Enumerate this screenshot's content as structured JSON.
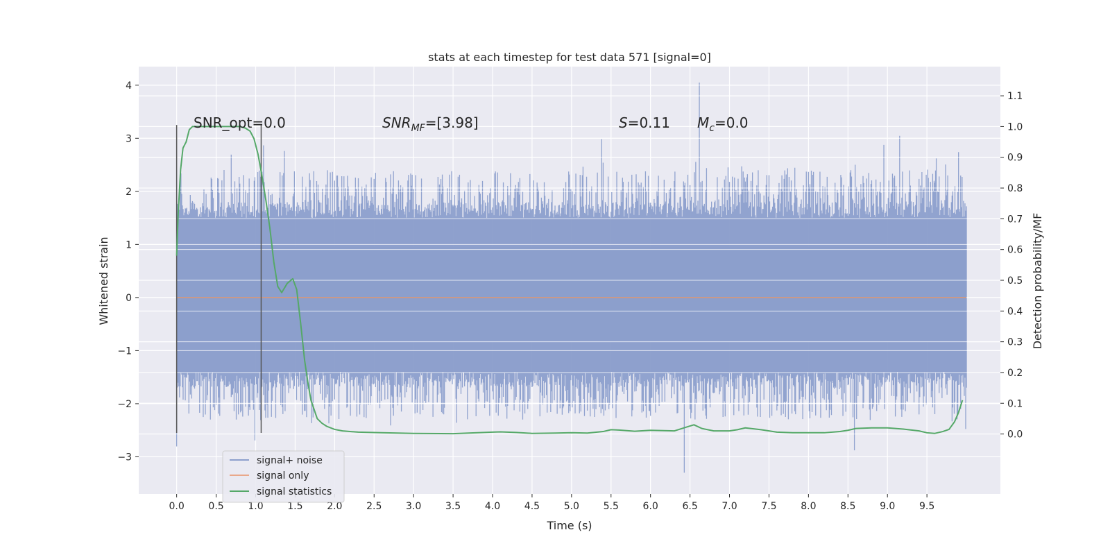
{
  "chart_data": {
    "type": "line",
    "title": "stats at each timestep for test data 571 [signal=0]",
    "xlabel": "Time (s)",
    "ylabel_left": "Whitened strain",
    "ylabel_right": "Detection probability/MF",
    "xlim": [
      -0.48,
      10.43
    ],
    "ylim_left": [
      -3.7,
      4.35
    ],
    "ylim_right": [
      -0.195,
      1.195
    ],
    "x_ticks": [
      0.0,
      0.5,
      1.0,
      1.5,
      2.0,
      2.5,
      3.0,
      3.5,
      4.0,
      4.5,
      5.0,
      5.5,
      6.0,
      6.5,
      7.0,
      7.5,
      8.0,
      8.5,
      9.0,
      9.5
    ],
    "x_tick_labels": [
      "0.0",
      "0.5",
      "1.0",
      "1.5",
      "2.0",
      "2.5",
      "3.0",
      "3.5",
      "4.0",
      "4.5",
      "5.0",
      "5.5",
      "6.0",
      "6.5",
      "7.0",
      "7.5",
      "8.0",
      "8.5",
      "9.0",
      "9.5"
    ],
    "y_left_ticks": [
      -3,
      -2,
      -1,
      0,
      1,
      2,
      3,
      4
    ],
    "y_left_tick_labels": [
      "−3",
      "−2",
      "−1",
      "0",
      "1",
      "2",
      "3",
      "4"
    ],
    "y_right_ticks": [
      0.0,
      0.1,
      0.2,
      0.3,
      0.4,
      0.5,
      0.6,
      0.7,
      0.8,
      0.9,
      1.0,
      1.1
    ],
    "y_right_tick_labels": [
      "0.0",
      "0.1",
      "0.2",
      "0.3",
      "0.4",
      "0.5",
      "0.6",
      "0.7",
      "0.8",
      "0.9",
      "1.0",
      "1.1"
    ],
    "grid": true,
    "legend_position": "bottom-left",
    "legend": [
      "signal+ noise",
      "signal only",
      "signal statistics"
    ],
    "colors": {
      "noise": "#8c9fcc",
      "signal": "#dd8452",
      "stats": "#55a868",
      "vline": "#555555",
      "background": "#eaeaf2"
    },
    "annotations": {
      "snr_opt": "SNR_opt=0.0",
      "snr_mf_base": "SNR",
      "snr_mf_sub": "MF",
      "snr_mf_value": "=[3.98]",
      "s_sym": "S",
      "s_value": "=0.11",
      "mc_sym": "M",
      "mc_sub": "c",
      "mc_value": "=0.0"
    },
    "vertical_lines_x": [
      0.0,
      1.07
    ],
    "vertical_lines_y_range": [
      -2.55,
      3.25
    ],
    "series": [
      {
        "name": "signal+ noise",
        "axis": "left",
        "x_range": [
          0.0,
          10.0
        ],
        "core_band": [
          -1.4,
          1.5
        ],
        "dense_band": [
          -0.8,
          0.95
        ],
        "spike_max": 4.05,
        "spike_min": -3.3,
        "spike_max_x": 6.62,
        "spike_min_x": 6.43
      },
      {
        "name": "signal only",
        "axis": "left",
        "x": [
          0.0,
          10.0
        ],
        "y": [
          0.0,
          0.0
        ]
      },
      {
        "name": "signal statistics",
        "axis": "right",
        "x": [
          0.0,
          0.02,
          0.05,
          0.08,
          0.12,
          0.16,
          0.2,
          0.3,
          0.4,
          0.5,
          0.6,
          0.7,
          0.8,
          0.87,
          0.93,
          0.98,
          1.03,
          1.08,
          1.13,
          1.18,
          1.23,
          1.28,
          1.33,
          1.4,
          1.47,
          1.52,
          1.57,
          1.62,
          1.66,
          1.7,
          1.74,
          1.78,
          1.84,
          1.9,
          2.0,
          2.1,
          2.3,
          2.6,
          3.0,
          3.5,
          4.0,
          4.1,
          4.3,
          4.5,
          4.8,
          5.0,
          5.2,
          5.4,
          5.5,
          5.6,
          5.8,
          6.0,
          6.3,
          6.45,
          6.55,
          6.65,
          6.8,
          7.0,
          7.1,
          7.2,
          7.4,
          7.6,
          7.8,
          8.0,
          8.2,
          8.4,
          8.5,
          8.6,
          8.8,
          9.0,
          9.2,
          9.4,
          9.5,
          9.6,
          9.7,
          9.78,
          9.85,
          9.9,
          9.95
        ],
        "y": [
          0.58,
          0.72,
          0.86,
          0.93,
          0.95,
          0.99,
          1.0,
          1.0,
          1.0,
          1.0,
          1.0,
          1.0,
          1.0,
          0.995,
          0.985,
          0.96,
          0.91,
          0.84,
          0.76,
          0.67,
          0.56,
          0.48,
          0.46,
          0.49,
          0.505,
          0.47,
          0.36,
          0.24,
          0.17,
          0.11,
          0.08,
          0.05,
          0.035,
          0.025,
          0.015,
          0.01,
          0.006,
          0.004,
          0.002,
          0.001,
          0.006,
          0.007,
          0.005,
          0.002,
          0.003,
          0.004,
          0.003,
          0.008,
          0.014,
          0.013,
          0.009,
          0.012,
          0.01,
          0.022,
          0.03,
          0.018,
          0.01,
          0.01,
          0.014,
          0.02,
          0.014,
          0.006,
          0.004,
          0.004,
          0.004,
          0.008,
          0.012,
          0.018,
          0.02,
          0.02,
          0.016,
          0.01,
          0.004,
          0.002,
          0.008,
          0.015,
          0.04,
          0.07,
          0.11
        ]
      }
    ]
  }
}
